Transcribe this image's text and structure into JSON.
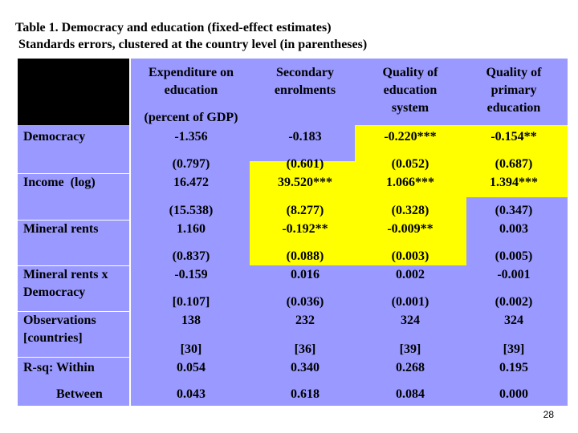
{
  "title": {
    "line1": "Table 1. Democracy and education (fixed-effect estimates)",
    "line2": "Standards errors, clustered at the country level (in parentheses)"
  },
  "columns": [
    {
      "line1": "Expenditure on",
      "line2": "education",
      "sub": "(percent of GDP)"
    },
    {
      "line1": "Secondary",
      "line2": "enrolments"
    },
    {
      "line1": "Quality of",
      "line2": "education",
      "line3": "system"
    },
    {
      "line1": "Quality of",
      "line2": "primary",
      "line3": "education"
    }
  ],
  "rows": [
    {
      "label": "Democracy",
      "coef": [
        "-1.356",
        "-0.183",
        "-0.220***",
        "-0.154**"
      ],
      "se": [
        "(0.797)",
        "(0.601)",
        "(0.052)",
        "(0.687)"
      ]
    },
    {
      "label": "Income  (log)",
      "coef": [
        "16.472",
        "39.520***",
        "1.066***",
        "1.394***"
      ],
      "se": [
        "(15.538)",
        "(8.277)",
        "(0.328)",
        "(0.347)"
      ]
    },
    {
      "label": "Mineral rents",
      "coef": [
        "1.160",
        "-0.192**",
        "-0.009**",
        "0.003"
      ],
      "se": [
        "(0.837)",
        "(0.088)",
        "(0.003)",
        "(0.005)"
      ]
    },
    {
      "label": "Mineral rents x",
      "label2": "Democracy",
      "coef": [
        "-0.159",
        "0.016",
        "0.002",
        "-0.001"
      ],
      "se": [
        "[0.107]",
        "(0.036)",
        "(0.001)",
        "(0.002)"
      ]
    },
    {
      "label": "Observations",
      "label2": "[countries]",
      "coef": [
        "138",
        "232",
        "324",
        "324"
      ],
      "se": [
        "[30]",
        "[36]",
        "[39]",
        "[39]"
      ]
    },
    {
      "label": "R-sq: Within",
      "coef": [
        "0.054",
        "0.340",
        "0.268",
        "0.195"
      ]
    },
    {
      "label": "Between",
      "coef": [
        "0.043",
        "0.618",
        "0.084",
        "0.000"
      ]
    }
  ],
  "colors": {
    "header_corner": "#000000",
    "label_bg": "#9999ff",
    "cell_bg": "#9999ff",
    "highlight": "#ffff00"
  },
  "page_number": "28"
}
